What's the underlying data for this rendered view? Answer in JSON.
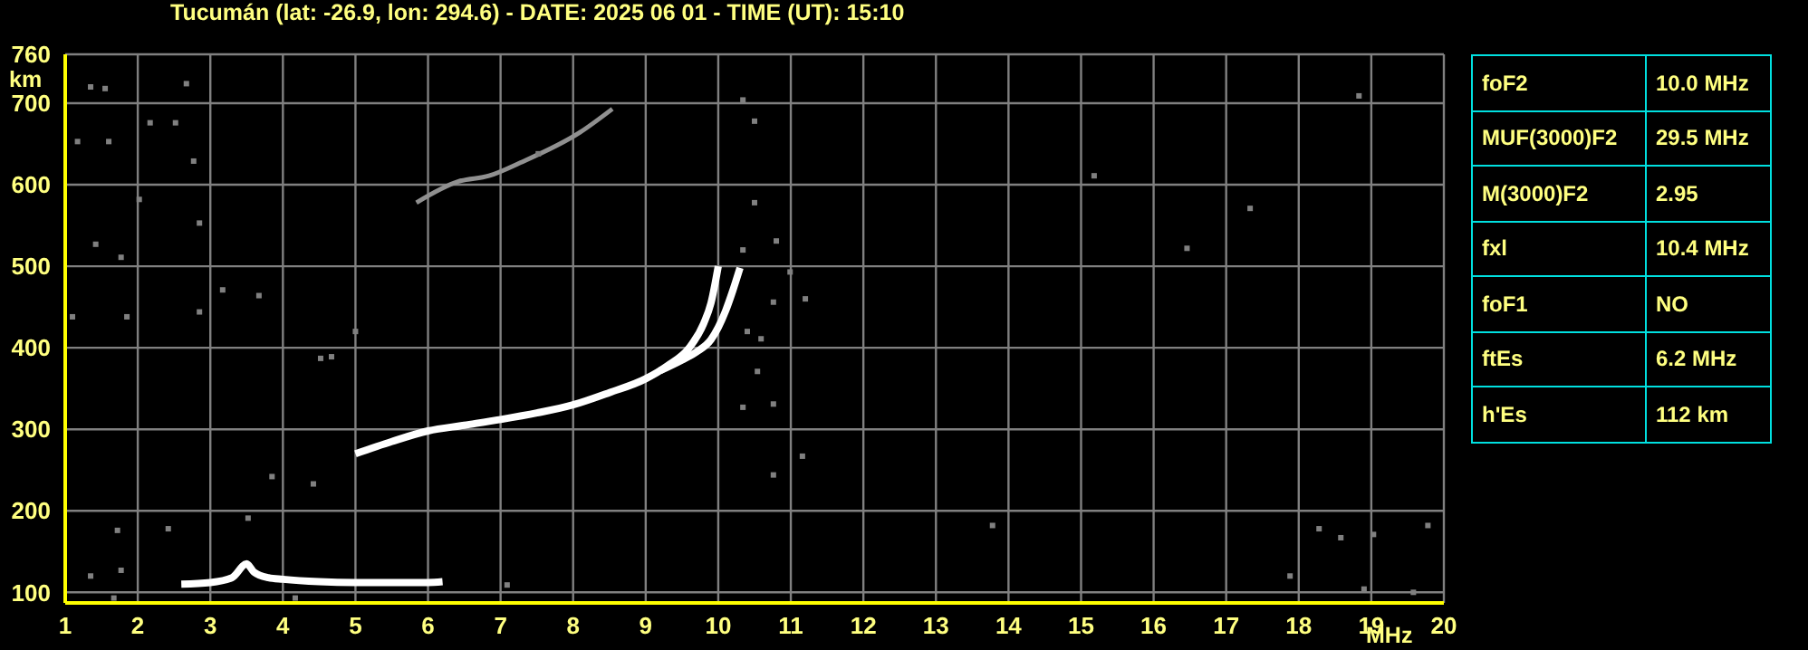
{
  "chart_data": [
    {
      "type": "line",
      "title": "Tucumán (lat: -26.9, lon: 294.6) - DATE: 2025 06 01 - TIME (UT): 15:10",
      "xlabel": "MHz",
      "ylabel": "km",
      "xlim": [
        1,
        20
      ],
      "xticks": [
        1,
        2,
        3,
        4,
        5,
        6,
        7,
        8,
        9,
        10,
        11,
        12,
        13,
        14,
        15,
        16,
        17,
        18,
        19,
        20
      ],
      "ylim": [
        87,
        760
      ],
      "yticks": [
        100,
        200,
        300,
        400,
        500,
        600,
        700,
        760
      ],
      "grid": true,
      "series": [
        {
          "type": "scatter",
          "marker": "square",
          "color": "#808080",
          "x": [
            1.35,
            1.55,
            2.67,
            2.77,
            2.52,
            2.17,
            1.17,
            1.6,
            2.02,
            1.42,
            1.77,
            2.85,
            3.17,
            3.67,
            7.52,
            10.34,
            10.5,
            10.5,
            10.34,
            1.1,
            1.85,
            2.85,
            10.8,
            10.76,
            11.2,
            10.4,
            10.59,
            10.54,
            10.76,
            10.34,
            11.16,
            10.76,
            4.52,
            4.67,
            4.42,
            3.85,
            1.72,
            2.42,
            3.52,
            1.77,
            1.35,
            7.09,
            4.17,
            1.67,
            18.28,
            18.58,
            19.78,
            19.03,
            18.9,
            19.58,
            17.88,
            17.33,
            16.46,
            15.18,
            10.99,
            13.78,
            18.83,
            5.0
          ],
          "values": [
            720,
            718,
            724,
            629,
            676,
            676,
            653,
            653,
            582,
            527,
            511,
            553,
            471,
            464,
            638,
            704,
            678,
            578,
            520,
            438,
            438,
            444,
            531,
            456,
            460,
            420,
            411,
            371,
            331,
            327,
            267,
            244,
            387,
            389,
            233,
            242,
            176,
            178,
            191,
            127,
            120,
            109,
            93,
            93,
            178,
            167,
            182,
            171,
            104,
            100,
            120,
            571,
            522,
            611,
            493,
            182,
            709,
            420
          ]
        },
        {
          "type": "line",
          "color": "#909090",
          "x": [
            5.84,
            6.42,
            6.84,
            7.27,
            8.09,
            8.54
          ],
          "values": [
            578,
            604,
            611,
            627,
            664,
            693
          ]
        },
        {
          "type": "line",
          "color": "#ffffff",
          "x": [
            2.6,
            3.0,
            3.3,
            3.5,
            3.6,
            3.8,
            4.0,
            4.5,
            5.0,
            5.5,
            6.0,
            6.2
          ],
          "values": [
            110,
            112,
            118,
            135,
            125,
            118,
            116,
            113,
            112,
            112,
            112,
            113
          ]
        },
        {
          "type": "line",
          "color": "#ffffff",
          "x": [
            5.0,
            5.5,
            6.0,
            6.5,
            7.0,
            7.5,
            8.0,
            8.5,
            9.0,
            9.3,
            9.6,
            9.8,
            9.9,
            10.0
          ],
          "values": [
            270,
            285,
            298,
            305,
            312,
            320,
            330,
            345,
            362,
            378,
            400,
            430,
            455,
            500
          ]
        },
        {
          "type": "line",
          "color": "#ffffff",
          "x": [
            9.2,
            9.5,
            9.7,
            9.9,
            10.0,
            10.1,
            10.2,
            10.3
          ],
          "values": [
            372,
            385,
            395,
            410,
            425,
            445,
            470,
            498
          ]
        }
      ]
    },
    {
      "type": "other",
      "categories": [
        "foF2",
        "MUF(3000)F2",
        "M(3000)F2",
        "fxl",
        "foF1",
        "ftEs",
        "h'Es"
      ],
      "value_labels": [
        "10.0 MHz",
        "29.5 MHz",
        "2.95",
        "10.4 MHz",
        "NO",
        "6.2 MHz",
        "112 km"
      ],
      "color": "#00e0e0"
    }
  ]
}
